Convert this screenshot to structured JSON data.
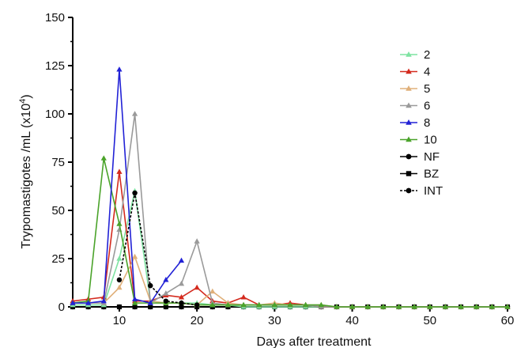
{
  "chart_data": {
    "type": "line",
    "title": "",
    "xlabel": "Days after treatment",
    "ylabel_main": "Trypomastigotes /mL (x10",
    "ylabel_exp": "4",
    "ylabel_close": ")",
    "xlim": [
      4,
      60
    ],
    "ylim": [
      0,
      150
    ],
    "xticks": [
      10,
      20,
      30,
      40,
      50,
      60
    ],
    "yticks": [
      0,
      25,
      50,
      75,
      100,
      125,
      150
    ],
    "xtick_labels": [
      "10",
      "20",
      "30",
      "40",
      "50",
      "60"
    ],
    "ytick_labels": [
      "0",
      "25",
      "50",
      "75",
      "100",
      "125",
      "150"
    ],
    "grid": false,
    "legend_position": "right",
    "series": [
      {
        "name": "2",
        "color": "#7fe3a2",
        "marker": "triangle",
        "dash": false,
        "x": [
          4,
          6,
          8,
          10,
          12,
          14,
          16,
          18,
          20,
          22,
          24,
          26,
          28,
          30,
          32,
          34,
          36,
          38,
          40,
          42,
          44,
          46,
          48,
          50,
          52,
          54,
          56,
          58,
          60
        ],
        "y": [
          1,
          1,
          1,
          25,
          60,
          3,
          2,
          2,
          2,
          1,
          1,
          0,
          0,
          0,
          0,
          0,
          0,
          0,
          0,
          0,
          0,
          0,
          0,
          0,
          0,
          0,
          0,
          0,
          0
        ]
      },
      {
        "name": "4",
        "color": "#d42a1e",
        "marker": "triangle",
        "dash": false,
        "x": [
          4,
          6,
          8,
          10,
          12,
          14,
          16,
          18,
          20,
          22,
          24,
          26,
          28,
          30,
          32,
          34,
          36,
          38,
          40,
          42,
          44,
          46,
          48,
          50,
          52,
          54,
          56,
          58,
          60
        ],
        "y": [
          3,
          4,
          5,
          70,
          3,
          3,
          6,
          5,
          10,
          3,
          2,
          5,
          1,
          1,
          2,
          1,
          0,
          0,
          0,
          0,
          0,
          0,
          0,
          0,
          0,
          0,
          0,
          0,
          0
        ]
      },
      {
        "name": "5",
        "color": "#e0b07a",
        "marker": "triangle",
        "dash": false,
        "x": [
          4,
          6,
          8,
          10,
          12,
          14,
          16,
          18,
          20,
          22,
          24,
          26,
          28,
          30,
          32,
          34,
          36,
          38,
          40,
          42,
          44,
          46,
          48,
          50,
          52,
          54,
          56,
          58,
          60
        ],
        "y": [
          2,
          2,
          2,
          10,
          26,
          3,
          2,
          2,
          1,
          8,
          2,
          1,
          1,
          2,
          1,
          1,
          1,
          0,
          0,
          0,
          0,
          0,
          0,
          0,
          0,
          0,
          0,
          0,
          0
        ]
      },
      {
        "name": "6",
        "color": "#9a9a9a",
        "marker": "triangle",
        "dash": false,
        "x": [
          4,
          6,
          8,
          10,
          12,
          14,
          16,
          18,
          20,
          22,
          24,
          26,
          28,
          30,
          32,
          34,
          36,
          38,
          40,
          42,
          44,
          46,
          48,
          50,
          52,
          54,
          56,
          58,
          60
        ],
        "y": [
          2,
          2,
          2,
          40,
          100,
          2,
          7,
          12,
          34,
          2,
          1,
          1,
          1,
          1,
          1,
          1,
          0,
          0,
          0,
          0,
          0,
          0,
          0,
          0,
          0,
          0,
          0,
          0,
          0
        ]
      },
      {
        "name": "8",
        "color": "#2222d6",
        "marker": "triangle",
        "dash": false,
        "x": [
          4,
          6,
          8,
          10,
          12,
          14,
          16,
          18
        ],
        "y": [
          2,
          2,
          3,
          123,
          4,
          2,
          14,
          24
        ]
      },
      {
        "name": "10",
        "color": "#4aa32a",
        "marker": "triangle",
        "dash": false,
        "x": [
          4,
          6,
          8,
          10,
          12,
          14,
          16,
          18,
          20,
          22,
          24,
          26,
          28,
          30,
          32,
          34,
          36,
          38,
          40,
          42,
          44,
          46,
          48,
          50,
          52,
          54,
          56,
          58,
          60
        ],
        "y": [
          2,
          3,
          77,
          43,
          2,
          2,
          2,
          2,
          1,
          1,
          1,
          1,
          1,
          1,
          1,
          1,
          1,
          0,
          0,
          0,
          0,
          0,
          0,
          0,
          0,
          0,
          0,
          0,
          0
        ]
      },
      {
        "name": "NF",
        "color": "#000000",
        "marker": "circle",
        "dash": false,
        "x": [
          4,
          6,
          8,
          10,
          12,
          14,
          16,
          18,
          20,
          22,
          24,
          26,
          28,
          30,
          32,
          34,
          36,
          38,
          40,
          42,
          44,
          46,
          48,
          50,
          52,
          54,
          56,
          58,
          60
        ],
        "y": [
          0,
          0,
          0,
          0,
          0,
          0,
          0,
          0,
          0,
          0,
          0,
          0,
          0,
          0,
          0,
          0,
          0,
          0,
          0,
          0,
          0,
          0,
          0,
          0,
          0,
          0,
          0,
          0,
          0
        ]
      },
      {
        "name": "BZ",
        "color": "#000000",
        "marker": "square",
        "dash": false,
        "x": [
          4,
          6,
          8,
          10,
          12,
          14,
          16,
          18,
          20,
          22,
          24,
          26,
          28,
          30,
          32,
          34,
          36,
          38,
          40,
          42,
          44,
          46,
          48,
          50,
          52,
          54,
          56,
          58,
          60
        ],
        "y": [
          0,
          0,
          0,
          0,
          0,
          0,
          0,
          0,
          0,
          0,
          0,
          0,
          0,
          0,
          0,
          0,
          0,
          0,
          0,
          0,
          0,
          0,
          0,
          0,
          0,
          0,
          0,
          0,
          0
        ]
      },
      {
        "name": "INT",
        "color": "#000000",
        "marker": "circle",
        "dash": true,
        "x": [
          10,
          12,
          14,
          16,
          18,
          20
        ],
        "y": [
          14,
          59,
          11,
          3,
          2,
          1
        ]
      }
    ]
  }
}
